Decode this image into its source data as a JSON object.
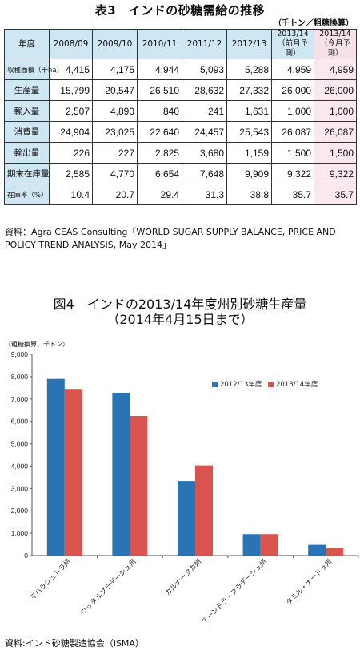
{
  "table3": {
    "title": "表3　インドの砂糖需給の推移",
    "unit": "（千トン／粗糖換算）",
    "header": {
      "row_label": "年度",
      "columns": [
        "2008/09",
        "2009/10",
        "2010/11",
        "2011/12",
        "2012/13",
        "2013/14\n（前月予測）",
        "2013/14\n（今月予測）"
      ]
    },
    "rows": [
      {
        "label": "収穫面積（千ha）",
        "values": [
          "4,415",
          "4,175",
          "4,944",
          "5,093",
          "5,288",
          "4,959",
          "4,959"
        ]
      },
      {
        "label": "生産量",
        "values": [
          "15,799",
          "20,547",
          "26,510",
          "28,632",
          "27,332",
          "26,000",
          "26,000"
        ]
      },
      {
        "label": "輸入量",
        "values": [
          "2,507",
          "4,890",
          "840",
          "241",
          "1,631",
          "1,000",
          "1,000"
        ]
      },
      {
        "label": "消費量",
        "values": [
          "24,904",
          "23,025",
          "22,640",
          "24,457",
          "25,543",
          "26,087",
          "26,087"
        ]
      },
      {
        "label": "輸出量",
        "values": [
          "226",
          "227",
          "2,825",
          "3,680",
          "1,159",
          "1,500",
          "1,500"
        ]
      },
      {
        "label": "期末在庫量",
        "values": [
          "2,585",
          "4,770",
          "6,654",
          "7,648",
          "9,909",
          "9,322",
          "9,322"
        ]
      },
      {
        "label": "在庫率（%）",
        "values": [
          "10.4",
          "20.7",
          "29.4",
          "31.3",
          "38.8",
          "35.7",
          "35.7"
        ]
      }
    ],
    "source": "資料：Agra CEAS Consulting「WORLD SUGAR SUPPLY BALANCE, PRICE AND POLICY TREND ANALYSIS, May 2014」"
  },
  "figure4": {
    "title_line1": "図4　インドの2013/14年度州別砂糖生産量",
    "title_line2": "（2014年4月15日まで）",
    "unit_note": "（粗糖換算、千トン）",
    "source": "資料:インド砂糖製造協会（ISMA）"
  },
  "chart_data": {
    "type": "bar",
    "categories": [
      "マハラシュトラ州",
      "ウッタルプラデーシュ州",
      "カルナータカ州",
      "アーンドラ・プラデーシュ州",
      "タミル・ナードゥ州"
    ],
    "series": [
      {
        "name": "2012/13年度",
        "color": "#2a74b5",
        "values": [
          7900,
          7280,
          3330,
          960,
          480
        ]
      },
      {
        "name": "2013/14年度",
        "color": "#d9534f",
        "values": [
          7450,
          6240,
          4030,
          960,
          360
        ]
      }
    ],
    "ylim": [
      0,
      9000
    ],
    "yticks": [
      0,
      1000,
      2000,
      3000,
      4000,
      5000,
      6000,
      7000,
      8000,
      9000
    ],
    "ytick_labels": [
      "0",
      "1,000",
      "2,000",
      "3,000",
      "4,000",
      "5,000",
      "6,000",
      "7,000",
      "8,000",
      "9,000"
    ],
    "ylabel": "（粗糖換算、千トン）",
    "grid": false,
    "legend": "top-right"
  }
}
